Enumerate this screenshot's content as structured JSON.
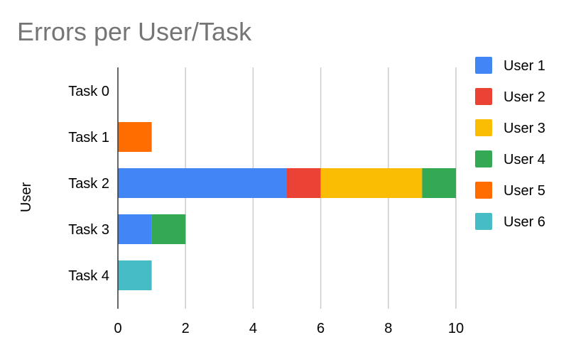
{
  "chart_data": {
    "type": "bar",
    "orientation": "horizontal",
    "stacked": true,
    "title": "Errors per User/Task",
    "xlabel": "",
    "ylabel": "User",
    "categories": [
      "Task 0",
      "Task 1",
      "Task 2",
      "Task 3",
      "Task 4"
    ],
    "xlim": [
      0,
      10
    ],
    "xticks": [
      0,
      2,
      4,
      6,
      8,
      10
    ],
    "grid": "vertical",
    "legend_position": "right",
    "series": [
      {
        "name": "User 1",
        "color": "#4285f4",
        "values": [
          0,
          0,
          5,
          1,
          0
        ]
      },
      {
        "name": "User 2",
        "color": "#ea4335",
        "values": [
          0,
          0,
          1,
          0,
          0
        ]
      },
      {
        "name": "User 3",
        "color": "#fbbc04",
        "values": [
          0,
          0,
          3,
          0,
          0
        ]
      },
      {
        "name": "User 4",
        "color": "#34a853",
        "values": [
          0,
          0,
          1,
          1,
          0
        ]
      },
      {
        "name": "User 5",
        "color": "#ff6d01",
        "values": [
          0,
          1,
          0,
          0,
          0
        ]
      },
      {
        "name": "User 6",
        "color": "#46bdc6",
        "values": [
          0,
          0,
          0,
          0,
          1
        ]
      }
    ]
  }
}
